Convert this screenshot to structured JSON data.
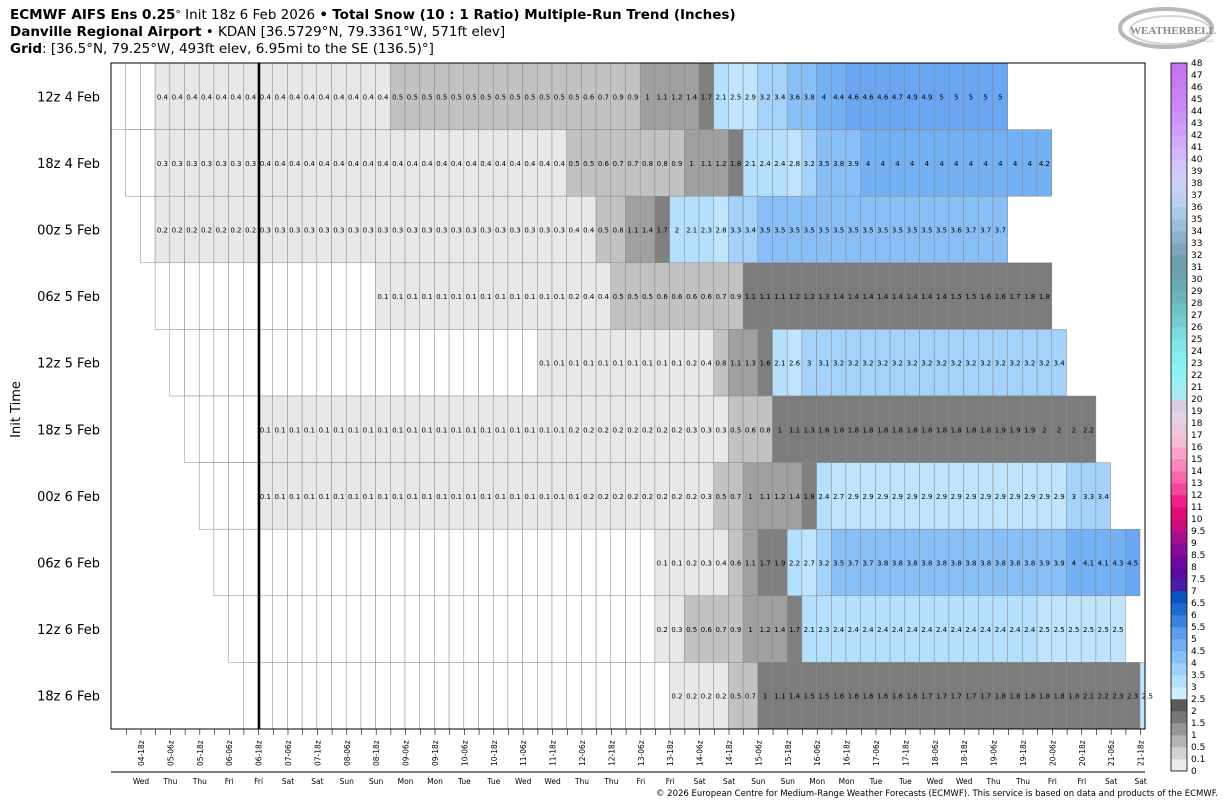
{
  "header": {
    "line1": {
      "model": "ECMWF AIFS Ens 0.25",
      "deg": "°",
      "init": "Init 18z 6 Feb 2026",
      "sep": "•",
      "product": "Total Snow (10 : 1 Ratio) Multiple-Run Trend (Inches)"
    },
    "line2": {
      "location": "Danville Regional Airport",
      "sep": "•",
      "details": "KDAN [36.5729°N, 79.3361°W, 571ft elev]"
    },
    "line3": {
      "label": "Grid",
      "details": ": [36.5°N, 79.25°W, 493ft elev, 6.95mi to the SE (136.5)°]"
    }
  },
  "logo": {
    "text": "WEATHERBELL",
    "subtext": "ANALYTICS LLC"
  },
  "copyright": "© 2026 European Centre for Medium-Range Weather Forecasts (ECMWF). This service is based on data and products of the ECMWF.",
  "chart_data": {
    "type": "heatmap",
    "ylabel": "Init Time",
    "time_step_hours": 6,
    "current_time_marker": "06-18z",
    "x_ticks": [
      "04-18z",
      "05-06z",
      "05-18z",
      "06-06z",
      "06-18z",
      "07-06z",
      "07-18z",
      "08-06z",
      "08-18z",
      "09-06z",
      "09-18z",
      "10-06z",
      "10-18z",
      "11-06z",
      "11-18z",
      "12-06z",
      "12-18z",
      "13-06z",
      "13-18z",
      "14-06z",
      "14-18z",
      "15-06z",
      "15-18z",
      "16-06z",
      "16-18z",
      "17-06z",
      "17-18z",
      "18-06z",
      "18-18z",
      "19-06z",
      "19-18z",
      "20-06z",
      "20-18z",
      "21-06z",
      "21-18z"
    ],
    "day_labels": [
      "Wed",
      "Thu",
      "Thu",
      "Fri",
      "Fri",
      "Sat",
      "Sat",
      "Sun",
      "Sun",
      "Mon",
      "Mon",
      "Tue",
      "Tue",
      "Wed",
      "Wed",
      "Thu",
      "Thu",
      "Fri",
      "Fri",
      "Sat",
      "Sat",
      "Sun",
      "Sun",
      "Mon",
      "Mon",
      "Tue",
      "Tue",
      "Wed",
      "Wed",
      "Thu",
      "Thu",
      "Fri",
      "Fri",
      "Sat",
      "Sat"
    ],
    "runs": [
      {
        "init": "12z 4 Feb",
        "values": [
          0,
          0,
          0,
          0.4,
          0.4,
          0.4,
          0.4,
          0.4,
          0.4,
          0.4,
          0.4,
          0.4,
          0.4,
          0.4,
          0.4,
          0.4,
          0.4,
          0.4,
          0.4,
          0.5,
          0.5,
          0.5,
          0.5,
          0.5,
          0.5,
          0.5,
          0.5,
          0.5,
          0.5,
          0.5,
          0.5,
          0.5,
          0.6,
          0.7,
          0.9,
          0.9,
          1,
          1.1,
          1.2,
          1.4,
          1.7,
          2.1,
          2.5,
          2.9,
          3.2,
          3.4,
          3.6,
          3.8,
          4,
          4.4,
          4.6,
          4.6,
          4.6,
          4.7,
          4.9,
          4.9,
          5,
          5,
          5,
          5,
          5
        ]
      },
      {
        "init": "18z 4 Feb",
        "values": [
          0,
          0,
          0.3,
          0.3,
          0.3,
          0.3,
          0.3,
          0.3,
          0.3,
          0.4,
          0.4,
          0.4,
          0.4,
          0.4,
          0.4,
          0.4,
          0.4,
          0.4,
          0.4,
          0.4,
          0.4,
          0.4,
          0.4,
          0.4,
          0.4,
          0.4,
          0.4,
          0.4,
          0.4,
          0.4,
          0.5,
          0.5,
          0.6,
          0.7,
          0.7,
          0.8,
          0.8,
          0.9,
          1,
          1.1,
          1.2,
          1.8,
          2.1,
          2.4,
          2.4,
          2.8,
          3.2,
          3.5,
          3.8,
          3.9,
          4,
          4,
          4,
          4,
          4,
          4,
          4,
          4,
          4,
          4,
          4,
          4,
          4.2
        ]
      },
      {
        "init": "00z 5 Feb",
        "values": [
          0,
          0.2,
          0.2,
          0.2,
          0.2,
          0.2,
          0.2,
          0.2,
          0.3,
          0.3,
          0.3,
          0.3,
          0.3,
          0.3,
          0.3,
          0.3,
          0.3,
          0.3,
          0.3,
          0.3,
          0.3,
          0.3,
          0.3,
          0.3,
          0.3,
          0.3,
          0.3,
          0.3,
          0.3,
          0.4,
          0.4,
          0.5,
          0.8,
          1.1,
          1.4,
          1.7,
          2,
          2.1,
          2.3,
          2.8,
          3.3,
          3.4,
          3.5,
          3.5,
          3.5,
          3.5,
          3.5,
          3.5,
          3.5,
          3.5,
          3.5,
          3.5,
          3.5,
          3.5,
          3.5,
          3.6,
          3.7,
          3.7,
          3.7
        ]
      },
      {
        "init": "06z 5 Feb",
        "values": [
          0,
          0,
          0,
          0,
          0,
          0,
          0,
          0,
          0,
          0,
          0,
          0,
          0,
          0,
          0,
          0.1,
          0.1,
          0.1,
          0.1,
          0.1,
          0.1,
          0.1,
          0.1,
          0.1,
          0.1,
          0.1,
          0.1,
          0.1,
          0.2,
          0.4,
          0.4,
          0.5,
          0.5,
          0.5,
          0.6,
          0.6,
          0.6,
          0.6,
          0.7,
          0.9,
          1.1,
          1.1,
          1.1,
          1.2,
          1.2,
          1.3,
          1.4,
          1.4,
          1.4,
          1.4,
          1.4,
          1.4,
          1.4,
          1.4,
          1.5,
          1.5,
          1.6,
          1.6,
          1.7,
          1.8,
          1.8
        ]
      },
      {
        "init": "12z 5 Feb",
        "values": [
          0,
          0,
          0,
          0,
          0,
          0,
          0,
          0,
          0,
          0,
          0,
          0,
          0,
          0,
          0,
          0,
          0,
          0,
          0,
          0,
          0,
          0,
          0,
          0,
          0,
          0.1,
          0.1,
          0.1,
          0.1,
          0.1,
          0.1,
          0.1,
          0.1,
          0.1,
          0.1,
          0.2,
          0.4,
          0.8,
          1.1,
          1.3,
          1.6,
          2.1,
          2.6,
          3,
          3.1,
          3.2,
          3.2,
          3.2,
          3.2,
          3.2,
          3.2,
          3.2,
          3.2,
          3.2,
          3.2,
          3.2,
          3.2,
          3.2,
          3.2,
          3.2,
          3.4
        ]
      },
      {
        "init": "18z 5 Feb",
        "values": [
          0,
          0,
          0,
          0,
          0,
          0.1,
          0.1,
          0.1,
          0.1,
          0.1,
          0.1,
          0.1,
          0.1,
          0.1,
          0.1,
          0.1,
          0.1,
          0.1,
          0.1,
          0.1,
          0.1,
          0.1,
          0.1,
          0.1,
          0.1,
          0.1,
          0.2,
          0.2,
          0.2,
          0.2,
          0.2,
          0.2,
          0.2,
          0.2,
          0.3,
          0.3,
          0.3,
          0.5,
          0.6,
          0.8,
          1,
          1.1,
          1.3,
          1.6,
          1.8,
          1.8,
          1.8,
          1.8,
          1.8,
          1.8,
          1.8,
          1.8,
          1.8,
          1.8,
          1.8,
          1.9,
          1.9,
          1.9,
          2,
          2,
          2,
          2.2
        ]
      },
      {
        "init": "00z 6 Feb",
        "values": [
          0,
          0,
          0,
          0,
          0.1,
          0.1,
          0.1,
          0.1,
          0.1,
          0.1,
          0.1,
          0.1,
          0.1,
          0.1,
          0.1,
          0.1,
          0.1,
          0.1,
          0.1,
          0.1,
          0.1,
          0.1,
          0.1,
          0.1,
          0.1,
          0.1,
          0.2,
          0.2,
          0.2,
          0.2,
          0.2,
          0.2,
          0.2,
          0.2,
          0.3,
          0.5,
          0.7,
          1,
          1.1,
          1.2,
          1.4,
          1.8,
          2.4,
          2.7,
          2.9,
          2.9,
          2.9,
          2.9,
          2.9,
          2.9,
          2.9,
          2.9,
          2.9,
          2.9,
          2.9,
          2.9,
          2.9,
          2.9,
          2.9,
          3,
          3.3,
          3.4
        ]
      },
      {
        "init": "06z 6 Feb",
        "values": [
          0,
          0,
          0,
          0,
          0,
          0,
          0,
          0,
          0,
          0,
          0,
          0,
          0,
          0,
          0,
          0,
          0,
          0,
          0,
          0,
          0,
          0,
          0,
          0,
          0,
          0,
          0,
          0,
          0,
          0,
          0.1,
          0.1,
          0.2,
          0.3,
          0.4,
          0.6,
          1.1,
          1.7,
          1.9,
          2.2,
          2.7,
          3.2,
          3.5,
          3.7,
          3.7,
          3.8,
          3.8,
          3.8,
          3.8,
          3.8,
          3.8,
          3.8,
          3.8,
          3.8,
          3.8,
          3.8,
          3.9,
          3.9,
          4,
          4.1,
          4.1,
          4.3,
          4.5
        ]
      },
      {
        "init": "12z 6 Feb",
        "values": [
          0,
          0,
          0,
          0,
          0,
          0,
          0,
          0,
          0,
          0,
          0,
          0,
          0,
          0,
          0,
          0,
          0,
          0,
          0,
          0,
          0,
          0,
          0,
          0,
          0,
          0,
          0,
          0,
          0,
          0.2,
          0.3,
          0.5,
          0.6,
          0.7,
          0.9,
          1,
          1.2,
          1.4,
          1.7,
          2.1,
          2.3,
          2.4,
          2.4,
          2.4,
          2.4,
          2.4,
          2.4,
          2.4,
          2.4,
          2.4,
          2.4,
          2.4,
          2.4,
          2.4,
          2.4,
          2.5,
          2.5,
          2.5,
          2.5,
          2.5,
          2.5
        ]
      },
      {
        "init": "18z 6 Feb",
        "values": [
          0,
          0,
          0,
          0,
          0,
          0,
          0,
          0,
          0,
          0,
          0,
          0,
          0,
          0,
          0,
          0,
          0,
          0,
          0,
          0,
          0,
          0,
          0,
          0,
          0,
          0,
          0,
          0,
          0,
          0.2,
          0.2,
          0.2,
          0.2,
          0.5,
          0.7,
          1,
          1.1,
          1.4,
          1.5,
          1.5,
          1.6,
          1.6,
          1.6,
          1.6,
          1.6,
          1.6,
          1.7,
          1.7,
          1.7,
          1.7,
          1.7,
          1.8,
          1.8,
          1.8,
          1.8,
          1.8,
          1.8,
          2.1,
          2.2,
          2.3,
          2.3,
          2.5
        ]
      }
    ],
    "colorbar": {
      "levels": [
        "0",
        "0.1",
        "0.5",
        "1",
        "1.5",
        "2",
        "2.5",
        "3",
        "3.5",
        "4",
        "4.5",
        "5",
        "5.5",
        "6",
        "6.5",
        "7",
        "7.5",
        "8",
        "8.5",
        "9",
        "9.5",
        "10",
        "11",
        "12",
        "13",
        "14",
        "15",
        "16",
        "17",
        "18",
        "19",
        "20",
        "21",
        "22",
        "23",
        "24",
        "25",
        "26",
        "27",
        "28",
        "29",
        "30",
        "31",
        "32",
        "33",
        "34",
        "35",
        "36",
        "37",
        "38",
        "39",
        "40",
        "41",
        "42",
        "43",
        "44",
        "45",
        "46",
        "47",
        "48"
      ],
      "colors": [
        "#ffffff",
        "#ebebeb",
        "#d2d2d2",
        "#b4b4b4",
        "#969696",
        "#787878",
        "#5a5a5a",
        "#cdeefe",
        "#b4e0fe",
        "#9dd0fc",
        "#86c0f8",
        "#6eaef2",
        "#5c9cea",
        "#3a84dd",
        "#1a6ad0",
        "#0a52c0",
        "#4a1ca8",
        "#5a0ca0",
        "#6e0aa0",
        "#880c98",
        "#a80e8c",
        "#c80e80",
        "#e40c78",
        "#f0208a",
        "#f4489c",
        "#f668ac",
        "#f888bc",
        "#f8a4c8",
        "#f4bcd6",
        "#ecc8dc",
        "#e2d4e4",
        "#d8cce4",
        "#a6eaf2",
        "#98f0f4",
        "#8cf2f2",
        "#86eeee",
        "#80e4e6",
        "#7adadc",
        "#74cccf",
        "#70c0c4",
        "#6cb4ba",
        "#6aaab2",
        "#6ca2ae",
        "#709eb0",
        "#7ea6be",
        "#8cb2cc",
        "#9cbedc",
        "#acc8ea",
        "#bccff4",
        "#c8d0f8",
        "#d0ccfa",
        "#d4c4fa",
        "#d4b6fa",
        "#d2a8fa",
        "#d09cfa",
        "#cc92f8",
        "#ca88f6",
        "#c880f4",
        "#c67af2",
        "#c474f0"
      ]
    }
  }
}
